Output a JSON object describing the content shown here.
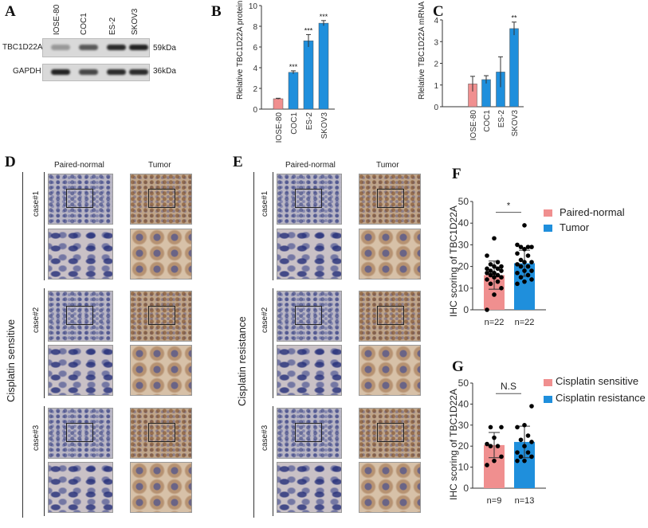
{
  "panels": {
    "A": "A",
    "B": "B",
    "C": "C",
    "D": "D",
    "E": "E",
    "F": "F",
    "G": "G"
  },
  "colors": {
    "control": "#f08f8f",
    "treatment": "#1f8fdc"
  },
  "blot": {
    "lanes": [
      "IOSE-80",
      "COC1",
      "ES-2",
      "SKOV3"
    ],
    "rows": [
      {
        "protein": "TBC1D22A",
        "size": "59kDa",
        "intensity": [
          0.35,
          0.7,
          0.95,
          1.0
        ]
      },
      {
        "protein": "GAPDH",
        "size": "36kDa",
        "intensity": [
          1.0,
          0.8,
          0.95,
          0.95
        ]
      }
    ]
  },
  "ihc": {
    "columns": [
      "Paired-normal",
      "Tumor"
    ],
    "cases": [
      "case#1",
      "case#2",
      "case#3"
    ],
    "D_group": "Cisplatin sensitive",
    "E_group": "Cisplatin resistance"
  },
  "chart_data": [
    {
      "panel": "B",
      "type": "bar",
      "categories": [
        "IOSE-80",
        "COC1",
        "ES-2",
        "SKOV3"
      ],
      "values": [
        1.0,
        3.55,
        6.6,
        8.3
      ],
      "errors": [
        0.05,
        0.15,
        0.6,
        0.25
      ],
      "significance": [
        "",
        "***",
        "***",
        "***"
      ],
      "ylabel": "Rlelative TBC1D22A protein expression",
      "ylim": [
        0,
        10
      ],
      "yticks": [
        0,
        2,
        4,
        6,
        8,
        10
      ]
    },
    {
      "panel": "C",
      "type": "bar",
      "categories": [
        "IOSE-80",
        "COC1",
        "ES-2",
        "SKOV3"
      ],
      "values": [
        1.05,
        1.25,
        1.6,
        3.6
      ],
      "errors": [
        0.35,
        0.18,
        0.7,
        0.3
      ],
      "significance": [
        "",
        "",
        "",
        "**"
      ],
      "ylabel": "Rlelative TBC1D22A mRNA expression",
      "ylim": [
        0,
        4
      ],
      "yticks": [
        0,
        1,
        2,
        3,
        4
      ]
    },
    {
      "panel": "F",
      "type": "bar",
      "categories": [
        "n=22",
        "n=22"
      ],
      "series": [
        {
          "name": "Paired-normal",
          "mean": 16,
          "sd": 6.5,
          "points": [
            0,
            7,
            10,
            12,
            13,
            14,
            15,
            15,
            16,
            16,
            17,
            17,
            18,
            18,
            19,
            19,
            20,
            20,
            21,
            22,
            25,
            33
          ]
        },
        {
          "name": "Tumor",
          "mean": 21.5,
          "sd": 6,
          "points": [
            12,
            13,
            14,
            15,
            16,
            17,
            18,
            18,
            20,
            20,
            21,
            22,
            22,
            23,
            25,
            26,
            28,
            29,
            29,
            29,
            30,
            39
          ]
        }
      ],
      "significance": "*",
      "ylabel": "IHC scoring of TBC1D22A",
      "ylim": [
        0,
        50
      ],
      "yticks": [
        0,
        10,
        20,
        30,
        40,
        50
      ],
      "legend": "right"
    },
    {
      "panel": "G",
      "type": "bar",
      "categories": [
        "n=9",
        "n=13"
      ],
      "series": [
        {
          "name": "Cisplatin sensitive",
          "mean": 20.5,
          "sd": 6,
          "points": [
            11,
            13,
            15,
            20,
            20,
            21,
            24,
            29,
            29
          ]
        },
        {
          "name": "Cisplatin resistance",
          "mean": 22,
          "sd": 7.5,
          "points": [
            13,
            13,
            15,
            15,
            17,
            17,
            20,
            22,
            23,
            25,
            29,
            30,
            39
          ]
        }
      ],
      "significance": "N.S",
      "ylabel": "IHC scoring of TBC1D22A",
      "ylim": [
        0,
        50
      ],
      "yticks": [
        0,
        10,
        20,
        30,
        40,
        50
      ],
      "legend": "right"
    }
  ]
}
